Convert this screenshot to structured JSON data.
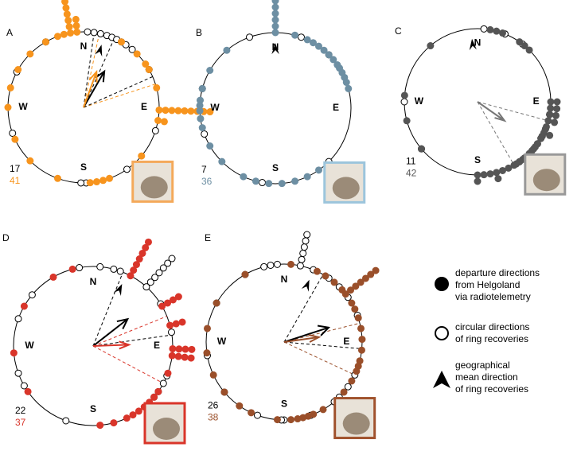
{
  "chart_data": [
    {
      "type": "polar",
      "panel": "A",
      "n_ring": 17,
      "n_radio": 41,
      "color": "#f7941d",
      "box_color": "#f4a95a",
      "radio": [
        300,
        315,
        330,
        340,
        345,
        350,
        350,
        350,
        350,
        350,
        350,
        350,
        355,
        355,
        355,
        30,
        45,
        55,
        60,
        75,
        92,
        92,
        92,
        92,
        92,
        92,
        92,
        92,
        92,
        100,
        100,
        130,
        160,
        165,
        170,
        175,
        200,
        225,
        245,
        270,
        285
      ],
      "ring": [
        3,
        8,
        13,
        18,
        22,
        26,
        30,
        34,
        40,
        60,
        108,
        145,
        178,
        182,
        250,
        298,
        330
      ],
      "triangle": 16,
      "arrows": [
        {
          "angle": 30,
          "length": 0.55,
          "color": "#000000"
        },
        {
          "angle": 20,
          "length": 0.5,
          "color": "#f7941d"
        }
      ],
      "dashed": [
        {
          "angle": 8,
          "color": "#000000"
        },
        {
          "angle": 24,
          "color": "#000000"
        },
        {
          "angle": 12,
          "color": "#f7941d"
        },
        {
          "angle": 72,
          "color": "#f7941d"
        },
        {
          "angle": 66,
          "color": "#000000"
        }
      ]
    },
    {
      "type": "polar",
      "panel": "B",
      "n_ring": 7,
      "n_radio": 36,
      "color": "#6d8fa3",
      "box_color": "#9cc5dc",
      "radio": [
        0,
        0,
        0,
        0,
        0,
        0,
        15,
        25,
        30,
        35,
        40,
        45,
        50,
        55,
        58,
        62,
        66,
        70,
        75,
        145,
        155,
        165,
        175,
        185,
        195,
        205,
        225,
        240,
        255,
        262,
        268,
        272,
        276,
        285,
        300,
        320
      ],
      "ring": [
        20,
        45,
        135,
        190,
        250,
        285,
        340
      ],
      "triangle": 0,
      "arrows": [],
      "dashed": []
    },
    {
      "type": "polar",
      "panel": "C",
      "n_ring": 11,
      "n_radio": 42,
      "color": "#555555",
      "box_color": "#999999",
      "radio": [
        10,
        15,
        20,
        35,
        40,
        45,
        90,
        90,
        95,
        95,
        100,
        100,
        105,
        105,
        110,
        112,
        115,
        115,
        118,
        120,
        125,
        128,
        130,
        132,
        135,
        140,
        142,
        145,
        148,
        150,
        155,
        160,
        165,
        165,
        170,
        175,
        180,
        180,
        230,
        255,
        275,
        320
      ],
      "ring": [
        5,
        22,
        38,
        100,
        112,
        118,
        120,
        125,
        145,
        230,
        270
      ],
      "triangle": 355,
      "arrows": [
        {
          "angle": 125,
          "length": 0.45,
          "color": "#777777"
        }
      ],
      "dashed": [
        {
          "angle": 105,
          "color": "#777777"
        },
        {
          "angle": 150,
          "color": "#777777"
        }
      ]
    },
    {
      "type": "polar",
      "panel": "D",
      "n_ring": 22,
      "n_radio": 37,
      "color": "#d9352a",
      "box_color": "#d9352a",
      "radio": [
        28,
        28,
        28,
        28,
        28,
        28,
        28,
        60,
        60,
        60,
        60,
        75,
        75,
        75,
        92,
        92,
        92,
        92,
        97,
        97,
        97,
        97,
        110,
        125,
        130,
        135,
        140,
        145,
        150,
        155,
        165,
        175,
        235,
        265,
        300,
        330,
        345
      ],
      "ring": [
        5,
        15,
        42,
        42,
        42,
        42,
        42,
        42,
        42,
        58,
        80,
        112,
        118,
        125,
        130,
        200,
        240,
        250,
        290,
        310,
        350,
        20
      ],
      "triangle": 25,
      "arrows": [
        {
          "angle": 52,
          "length": 0.55,
          "color": "#000000"
        },
        {
          "angle": 88,
          "length": 0.45,
          "color": "#d9352a"
        }
      ],
      "dashed": [
        {
          "angle": 22,
          "color": "#000000"
        },
        {
          "angle": 68,
          "color": "#d9352a"
        },
        {
          "angle": 118,
          "color": "#d9352a"
        },
        {
          "angle": 82,
          "color": "#000000"
        }
      ]
    },
    {
      "type": "polar",
      "panel": "E",
      "n_ring": 26,
      "n_radio": 38,
      "color": "#9a4f2a",
      "box_color": "#a0522d",
      "radio": [
        25,
        32,
        40,
        48,
        52,
        52,
        52,
        52,
        52,
        52,
        52,
        60,
        65,
        72,
        80,
        88,
        96,
        104,
        108,
        112,
        120,
        130,
        150,
        158,
        162,
        166,
        170,
        175,
        185,
        205,
        215,
        230,
        245,
        262,
        280,
        300,
        330,
        5
      ],
      "ring": [
        12,
        12,
        12,
        12,
        12,
        12,
        22,
        35,
        45,
        55,
        70,
        115,
        125,
        140,
        160,
        180,
        182,
        200,
        230,
        260,
        300,
        330,
        345,
        350,
        355,
        135
      ],
      "triangle": 22,
      "arrows": [
        {
          "angle": 72,
          "length": 0.6,
          "color": "#000000"
        },
        {
          "angle": 82,
          "length": 0.45,
          "color": "#9a4f2a"
        }
      ],
      "dashed": [
        {
          "angle": 30,
          "color": "#000000"
        },
        {
          "angle": 76,
          "color": "#9a4f2a"
        },
        {
          "angle": 115,
          "color": "#9a4f2a"
        },
        {
          "angle": 95,
          "color": "#000000"
        }
      ]
    }
  ],
  "compass": [
    "N",
    "E",
    "S",
    "W"
  ],
  "legend": [
    "departure directions",
    "from Helgoland",
    "via radiotelemetry",
    "circular directions",
    "of ring recoveries",
    "geographical",
    "mean direction",
    "of ring recoveries"
  ]
}
